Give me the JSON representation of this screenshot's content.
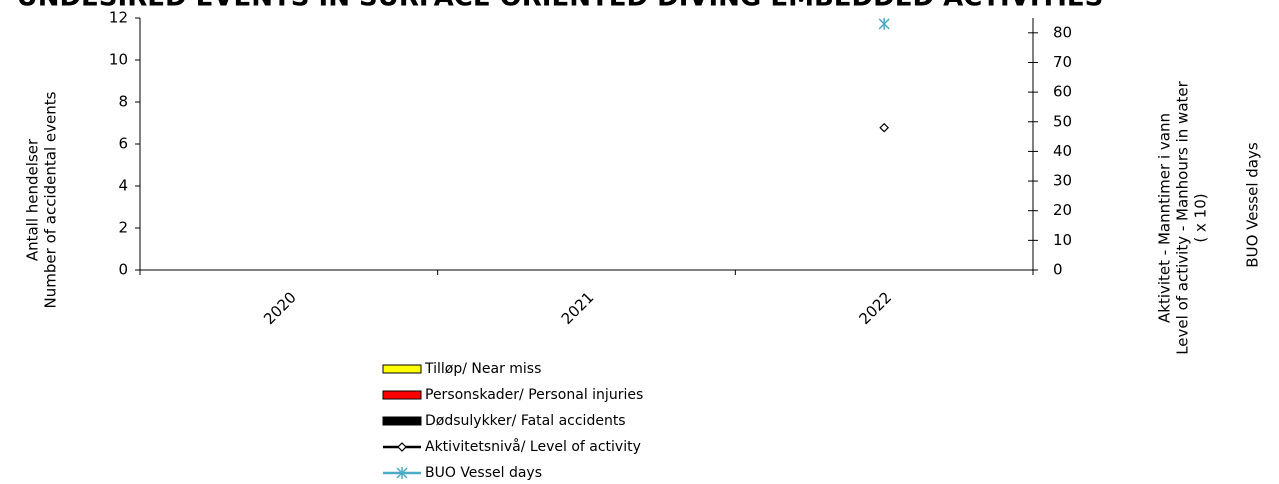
{
  "chart_data": {
    "type": "bar",
    "title": "UNDESIRED EVENTS IN SURFACE ORIENTED DIVING EMBEDDED ACTIVITIES",
    "categories": [
      "2020",
      "2021",
      "2022"
    ],
    "series": [
      {
        "name": "Tilløp/ Near miss",
        "color": "#ffff00",
        "values": [
          0,
          0,
          0
        ]
      },
      {
        "name": "Personskader/ Personal injuries",
        "color": "#ff0000",
        "values": [
          0,
          0,
          0
        ]
      },
      {
        "name": "Dødsulykker/ Fatal accidents",
        "color": "#000000",
        "values": [
          0,
          0,
          0
        ]
      },
      {
        "name": "Aktivitetsnivå/ Level of activity",
        "type": "line",
        "marker": "diamond",
        "color": "#000000",
        "axis": "y2",
        "values": [
          null,
          null,
          48
        ]
      },
      {
        "name": "BUO Vessel days",
        "type": "line",
        "marker": "asterisk",
        "color": "#4bacc6",
        "axis": "y2",
        "values": [
          null,
          null,
          83
        ]
      }
    ],
    "y_label": [
      "Antall hendelser",
      "Number of accidental events"
    ],
    "y2_label": [
      "Aktivitet - Manntimer i vann",
      "Level of activity - Manhours in water",
      "( x 10)"
    ],
    "y3_label": "BUO Vessel days",
    "ylim": [
      0,
      12
    ],
    "yticks": [
      0,
      2,
      4,
      6,
      8,
      10,
      12
    ],
    "y2lim": [
      0,
      85
    ],
    "y2ticks": [
      0,
      10,
      20,
      30,
      40,
      50,
      60,
      70,
      80
    ],
    "grid": false,
    "legend": "bottom"
  }
}
